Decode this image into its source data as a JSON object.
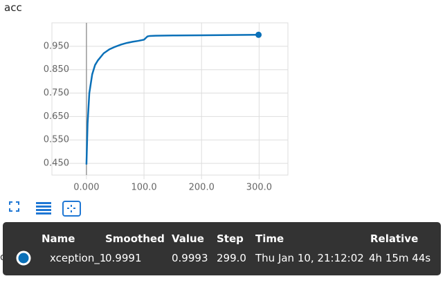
{
  "chart_data": {
    "type": "line",
    "title": "acc",
    "x": [
      0,
      2,
      5,
      10,
      15,
      20,
      30,
      40,
      50,
      60,
      70,
      80,
      90,
      100,
      103,
      106,
      110,
      120,
      150,
      200,
      250,
      299
    ],
    "values": [
      0.445,
      0.62,
      0.75,
      0.83,
      0.87,
      0.89,
      0.92,
      0.937,
      0.948,
      0.957,
      0.964,
      0.969,
      0.973,
      0.978,
      0.985,
      0.992,
      0.994,
      0.995,
      0.996,
      0.997,
      0.998,
      0.999
    ],
    "color": "#0a70b8",
    "xlim": [
      -60,
      350
    ],
    "ylim": [
      0.4,
      1.05
    ],
    "xticks": [
      {
        "value": 0,
        "label": "0.000"
      },
      {
        "value": 100,
        "label": "100.0"
      },
      {
        "value": 200,
        "label": "200.0"
      },
      {
        "value": 300,
        "label": "300.0"
      }
    ],
    "yticks": [
      {
        "value": 0.45,
        "label": "0.450"
      },
      {
        "value": 0.55,
        "label": "0.550"
      },
      {
        "value": 0.65,
        "label": "0.650"
      },
      {
        "value": 0.75,
        "label": "0.750"
      },
      {
        "value": 0.85,
        "label": "0.850"
      },
      {
        "value": 0.95,
        "label": "0.950"
      }
    ],
    "grid": true
  },
  "background_text": "os",
  "tooltip": {
    "headers": [
      "Name",
      "Smoothed",
      "Value",
      "Step",
      "Time",
      "Relative"
    ],
    "rows": [
      [
        "xception_1",
        "0.9991",
        "0.9993",
        "299.0",
        "Thu Jan 10, 21:12:02",
        "4h 15m 44s"
      ]
    ]
  }
}
